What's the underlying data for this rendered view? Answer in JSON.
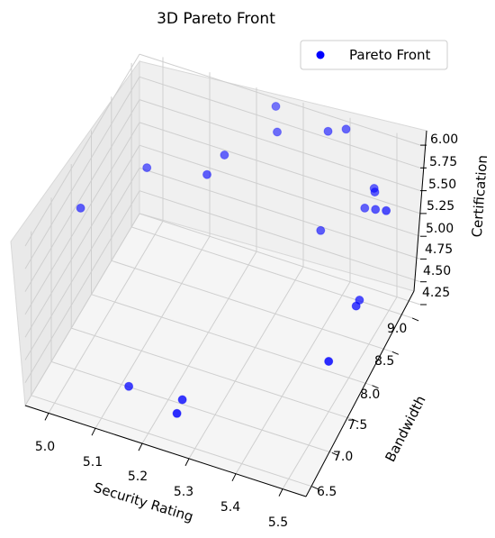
{
  "chart_data": {
    "type": "scatter",
    "projection": "3d",
    "title": "3D Pareto Front",
    "xlabel": "Security Rating",
    "ylabel": "Bandwidth",
    "zlabel": "Certification",
    "xlim": [
      4.95,
      5.55
    ],
    "ylim": [
      6.35,
      9.2
    ],
    "zlim": [
      4.25,
      6.05
    ],
    "xticks": [
      "5.0",
      "5.1",
      "5.2",
      "5.3",
      "5.4",
      "5.5"
    ],
    "yticks": [
      "6.5",
      "7.0",
      "7.5",
      "8.0",
      "8.5",
      "9.0"
    ],
    "zticks": [
      "4.25",
      "4.50",
      "4.75",
      "5.00",
      "5.25",
      "5.50",
      "5.75",
      "6.00"
    ],
    "grid": true,
    "legend": {
      "position": "top-right",
      "entries": [
        "Pareto Front"
      ]
    },
    "colors": {
      "marker": "#0000ff",
      "pane": "#f2f2f2",
      "grid": "#cfcfcf"
    },
    "series": [
      {
        "name": "Pareto Front",
        "points": [
          {
            "x": 5.12,
            "y": 6.95,
            "z": 4.3
          },
          {
            "x": 5.23,
            "y": 7.0,
            "z": 4.3
          },
          {
            "x": 5.24,
            "y": 6.75,
            "z": 4.35
          },
          {
            "x": 5.5,
            "y": 7.5,
            "z": 4.8
          },
          {
            "x": 5.49,
            "y": 8.3,
            "z": 4.8
          },
          {
            "x": 5.48,
            "y": 8.5,
            "z": 4.7
          },
          {
            "x": 5.52,
            "y": 8.7,
            "z": 5.6
          },
          {
            "x": 5.48,
            "y": 8.9,
            "z": 5.4
          },
          {
            "x": 5.47,
            "y": 9.0,
            "z": 5.5
          },
          {
            "x": 5.46,
            "y": 9.1,
            "z": 5.45
          },
          {
            "x": 5.44,
            "y": 9.1,
            "z": 5.2
          },
          {
            "x": 5.38,
            "y": 8.7,
            "z": 5.15
          },
          {
            "x": 5.4,
            "y": 9.1,
            "z": 6.0
          },
          {
            "x": 5.27,
            "y": 8.9,
            "z": 5.9
          },
          {
            "x": 5.2,
            "y": 8.4,
            "z": 5.9
          },
          {
            "x": 5.18,
            "y": 8.2,
            "z": 5.8
          },
          {
            "x": 4.97,
            "y": 7.5,
            "z": 5.6
          },
          {
            "x": 5.25,
            "y": 9.1,
            "z": 6.0
          },
          {
            "x": 5.37,
            "y": 9.0,
            "z": 6.0
          },
          {
            "x": 5.06,
            "y": 8.1,
            "z": 5.75
          }
        ]
      }
    ]
  }
}
